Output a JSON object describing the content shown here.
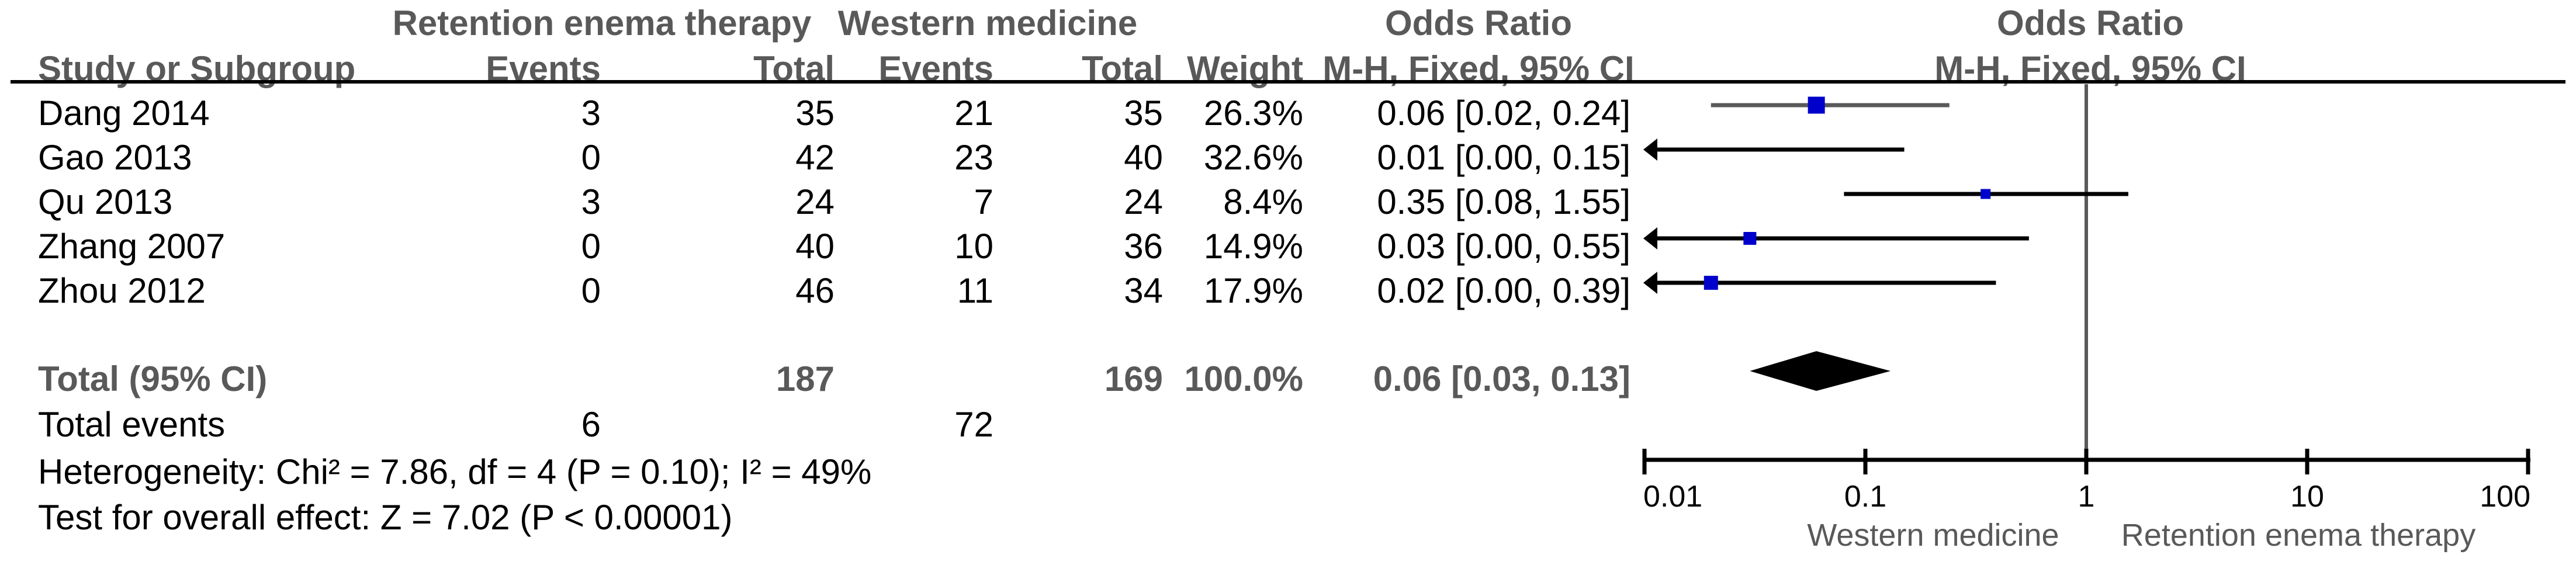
{
  "table": {
    "headers": {
      "group1": "Retention enema therapy",
      "group2": "Western medicine",
      "study": "Study or Subgroup",
      "events": "Events",
      "total": "Total",
      "weight": "Weight",
      "or_label": "Odds Ratio",
      "method": "M-H, Fixed, 95% CI"
    },
    "studies": [
      {
        "name": "Dang 2014",
        "events1": "3",
        "total1": "35",
        "events2": "21",
        "total2": "35",
        "weight": "26.3%",
        "weight_pct": 26.3,
        "or_text": "0.06 [0.02, 0.24]",
        "or": 0.06,
        "ci_low": 0.02,
        "ci_high": 0.24,
        "arrow_left": false,
        "has_square": true,
        "line_color": "#595959"
      },
      {
        "name": "Gao 2013",
        "events1": "0",
        "total1": "42",
        "events2": "23",
        "total2": "40",
        "weight": "32.6%",
        "weight_pct": 32.6,
        "or_text": "0.01 [0.00, 0.15]",
        "or": 0.01,
        "ci_low": 0.0,
        "ci_high": 0.15,
        "arrow_left": true,
        "has_square": false,
        "line_color": "#000000"
      },
      {
        "name": "Qu 2013",
        "events1": "3",
        "total1": "24",
        "events2": "7",
        "total2": "24",
        "weight": "8.4%",
        "weight_pct": 8.4,
        "or_text": "0.35 [0.08, 1.55]",
        "or": 0.35,
        "ci_low": 0.08,
        "ci_high": 1.55,
        "arrow_left": false,
        "has_square": true,
        "line_color": "#000000"
      },
      {
        "name": "Zhang 2007",
        "events1": "0",
        "total1": "40",
        "events2": "10",
        "total2": "36",
        "weight": "14.9%",
        "weight_pct": 14.9,
        "or_text": "0.03 [0.00, 0.55]",
        "or": 0.03,
        "ci_low": 0.0,
        "ci_high": 0.55,
        "arrow_left": true,
        "has_square": true,
        "line_color": "#000000"
      },
      {
        "name": "Zhou 2012",
        "events1": "0",
        "total1": "46",
        "events2": "11",
        "total2": "34",
        "weight": "17.9%",
        "weight_pct": 17.9,
        "or_text": "0.02 [0.00, 0.39]",
        "or": 0.02,
        "ci_low": 0.0,
        "ci_high": 0.39,
        "arrow_left": true,
        "has_square": true,
        "line_color": "#000000"
      }
    ],
    "total_row": {
      "label": "Total (95% CI)",
      "total1": "187",
      "total2": "169",
      "weight": "100.0%",
      "or_text": "0.06 [0.03, 0.13]",
      "or": 0.06,
      "ci_low": 0.03,
      "ci_high": 0.13
    },
    "total_events": {
      "label": "Total events",
      "events1": "6",
      "events2": "72"
    },
    "heterogeneity": "Heterogeneity: Chi² = 7.86, df = 4 (P = 0.10); I² = 49%",
    "overall_effect": "Test for overall effect: Z = 7.02 (P < 0.00001)"
  },
  "plot": {
    "axis_ticks": [
      "0.01",
      "0.1",
      "1",
      "10",
      "100"
    ],
    "axis_values": [
      0.01,
      0.1,
      1,
      10,
      100
    ],
    "reference_value": 1,
    "xlabel_left": "Western medicine",
    "xlabel_right": "Retention enema therapy",
    "colors": {
      "square": "#0000CC",
      "ci_line": "#000000",
      "dang_ci_line": "#595959",
      "axis": "#000000",
      "reference_line": "#595959",
      "muted_text": "#595959",
      "diamond": "#000000"
    }
  },
  "chart_data": {
    "type": "forest",
    "scale": "log10",
    "effect_measure": "Odds Ratio (M-H, Fixed, 95% CI)",
    "x_ticks": [
      0.01,
      0.1,
      1,
      10,
      100
    ],
    "xlim": [
      0.01,
      100
    ],
    "reference_line": 1,
    "favours_left_label": "Western medicine",
    "favours_right_label": "Retention enema therapy",
    "studies": [
      {
        "study": "Dang 2014",
        "events_treatment": 3,
        "total_treatment": 35,
        "events_control": 21,
        "total_control": 35,
        "weight_pct": 26.3,
        "or": 0.06,
        "ci": [
          0.02,
          0.24
        ]
      },
      {
        "study": "Gao 2013",
        "events_treatment": 0,
        "total_treatment": 42,
        "events_control": 23,
        "total_control": 40,
        "weight_pct": 32.6,
        "or": 0.01,
        "ci": [
          0.0,
          0.15
        ]
      },
      {
        "study": "Qu 2013",
        "events_treatment": 3,
        "total_treatment": 24,
        "events_control": 7,
        "total_control": 24,
        "weight_pct": 8.4,
        "or": 0.35,
        "ci": [
          0.08,
          1.55
        ]
      },
      {
        "study": "Zhang 2007",
        "events_treatment": 0,
        "total_treatment": 40,
        "events_control": 10,
        "total_control": 36,
        "weight_pct": 14.9,
        "or": 0.03,
        "ci": [
          0.0,
          0.55
        ]
      },
      {
        "study": "Zhou 2012",
        "events_treatment": 0,
        "total_treatment": 46,
        "events_control": 11,
        "total_control": 34,
        "weight_pct": 17.9,
        "or": 0.02,
        "ci": [
          0.0,
          0.39
        ]
      }
    ],
    "total": {
      "label": "Total (95% CI)",
      "total_treatment": 187,
      "total_control": 169,
      "weight_pct": 100.0,
      "or": 0.06,
      "ci": [
        0.03,
        0.13
      ],
      "total_events_treatment": 6,
      "total_events_control": 72
    },
    "heterogeneity": {
      "chi2": 7.86,
      "df": 4,
      "p": 0.1,
      "i2_pct": 49
    },
    "overall_effect": {
      "z": 7.02,
      "p": "< 0.00001"
    }
  }
}
